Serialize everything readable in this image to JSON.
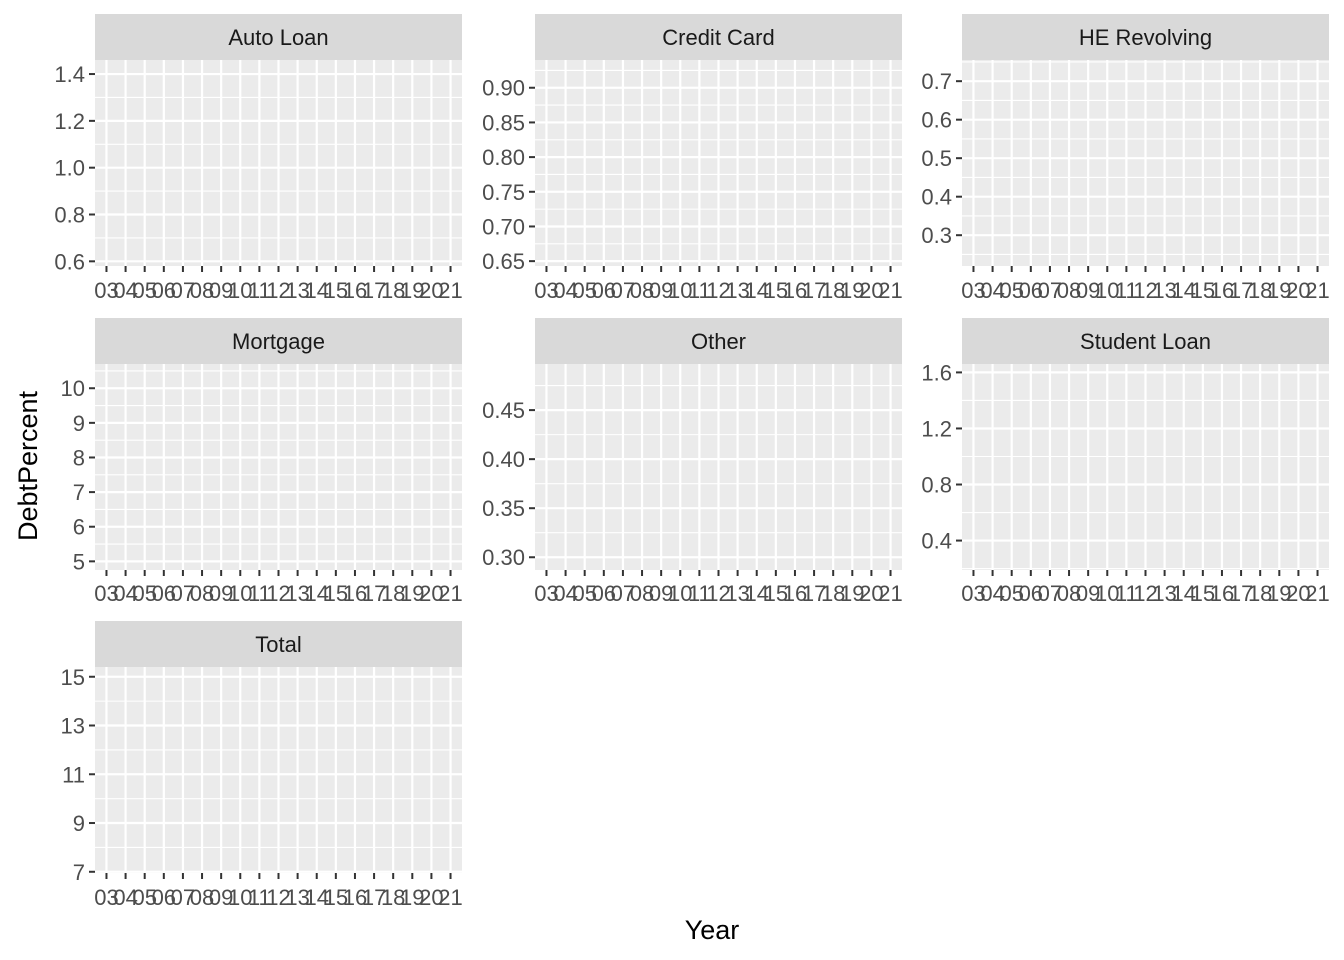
{
  "chart_data": {
    "type": "line",
    "layout": "facet-grid",
    "facet_rows": 3,
    "facet_cols": 3,
    "xlabel": "Year",
    "ylabel": "DebtPercent",
    "x_ticks": [
      "03",
      "04",
      "05",
      "06",
      "07",
      "08",
      "09",
      "10",
      "11",
      "12",
      "13",
      "14",
      "15",
      "16",
      "17",
      "18",
      "19",
      "20",
      "21"
    ],
    "grid": true,
    "colors": {
      "panel_bg": "#ebebeb",
      "strip_bg": "#d9d9d9",
      "grid_line": "#ffffff",
      "tick_text": "#4d4d4d",
      "strip_text": "#1a1a1a",
      "axis_title": "#000000",
      "tick_mark": "#333333"
    },
    "facets": [
      {
        "title": "Auto Loan",
        "ylim": [
          0.58,
          1.46
        ],
        "y_ticks": [
          0.6,
          0.8,
          1.0,
          1.2,
          1.4
        ],
        "y_tick_labels": [
          "0.6",
          "0.8",
          "1.0",
          "1.2",
          "1.4"
        ],
        "series": []
      },
      {
        "title": "Credit Card",
        "ylim": [
          0.643,
          0.94
        ],
        "y_ticks": [
          0.65,
          0.7,
          0.75,
          0.8,
          0.85,
          0.9
        ],
        "y_tick_labels": [
          "0.65",
          "0.70",
          "0.75",
          "0.80",
          "0.85",
          "0.90"
        ],
        "series": []
      },
      {
        "title": "HE Revolving",
        "ylim": [
          0.22,
          0.755
        ],
        "y_ticks": [
          0.3,
          0.4,
          0.5,
          0.6,
          0.7
        ],
        "y_tick_labels": [
          "0.3",
          "0.4",
          "0.5",
          "0.6",
          "0.7"
        ],
        "series": []
      },
      {
        "title": "Mortgage",
        "ylim": [
          4.75,
          10.7
        ],
        "y_ticks": [
          5,
          6,
          7,
          8,
          9,
          10
        ],
        "y_tick_labels": [
          "5",
          "6",
          "7",
          "8",
          "9",
          "10"
        ],
        "series": []
      },
      {
        "title": "Other",
        "ylim": [
          0.287,
          0.497
        ],
        "y_ticks": [
          0.3,
          0.35,
          0.4,
          0.45
        ],
        "y_tick_labels": [
          "0.30",
          "0.35",
          "0.40",
          "0.45"
        ],
        "series": []
      },
      {
        "title": "Student Loan",
        "ylim": [
          0.19,
          1.66
        ],
        "y_ticks": [
          0.4,
          0.8,
          1.2,
          1.6
        ],
        "y_tick_labels": [
          "0.4",
          "0.8",
          "1.2",
          "1.6"
        ],
        "series": []
      },
      {
        "title": "Total",
        "ylim": [
          6.95,
          15.4
        ],
        "y_ticks": [
          7,
          9,
          11,
          13,
          15
        ],
        "y_tick_labels": [
          "7",
          "9",
          "11",
          "13",
          "15"
        ],
        "series": []
      }
    ]
  }
}
